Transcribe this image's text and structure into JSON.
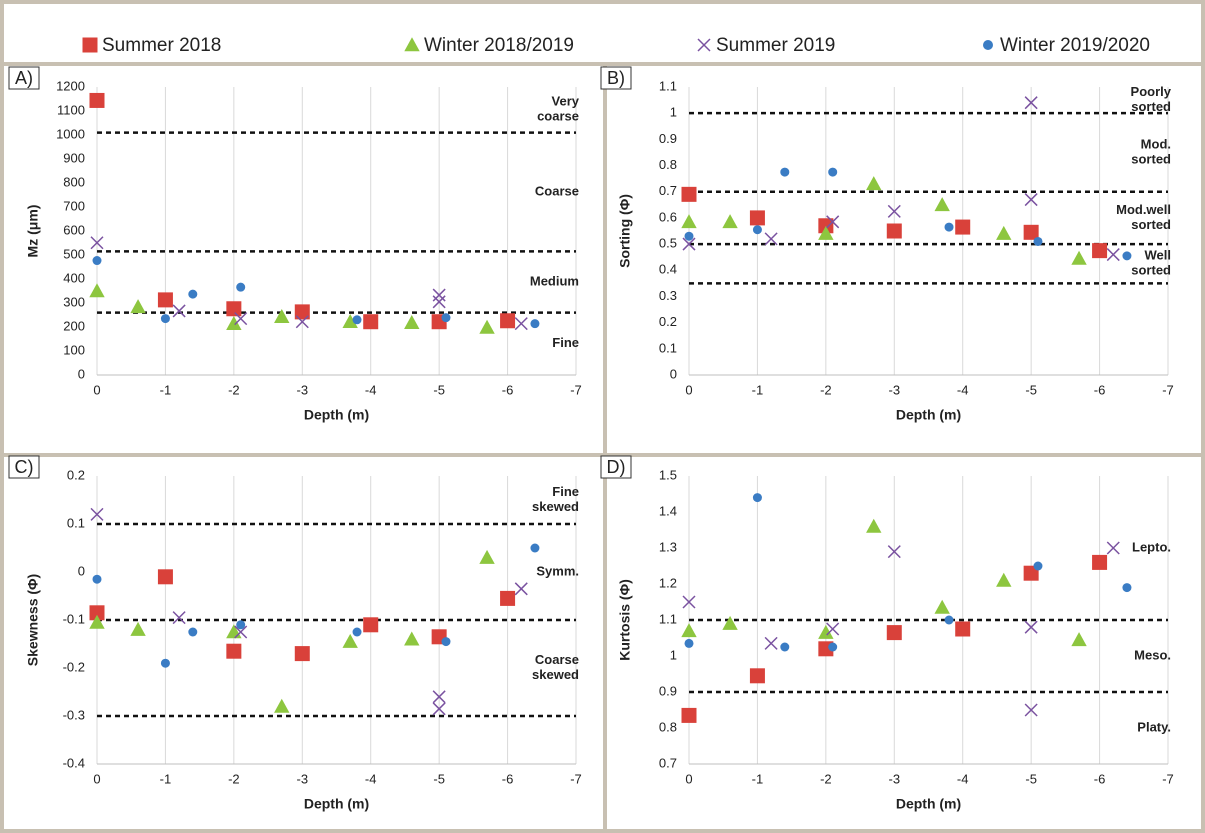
{
  "chart_data": [
    {
      "type": "scatter",
      "panel_label": "A)",
      "legend": "top",
      "xlabel": "Depth (m)",
      "ylabel": "Mz (μm)",
      "xlim": [
        0,
        -7
      ],
      "xticks": [
        0,
        -1,
        -2,
        -3,
        -4,
        -5,
        -6,
        -7
      ],
      "ylim": [
        0,
        1200
      ],
      "yticks": [
        0,
        100,
        200,
        300,
        400,
        500,
        600,
        700,
        800,
        900,
        1000,
        1100,
        1200
      ],
      "grid": true,
      "thresholds": [
        1010,
        515,
        260
      ],
      "zones": [
        [
          "Very",
          "coarse"
        ],
        [
          "Coarse"
        ],
        [
          "Medium"
        ],
        [
          "Fine"
        ]
      ],
      "series": [
        {
          "name": "Summer 2018",
          "color": "#d9413a",
          "marker": "square",
          "x": [
            0,
            -1,
            -2,
            -3,
            -4,
            -5,
            -6
          ],
          "values": [
            1144,
            313,
            276,
            263,
            222,
            222,
            226
          ]
        },
        {
          "name": "Winter 2018/2019",
          "color": "#8dc63f",
          "marker": "triangle",
          "x": [
            0,
            -0.6,
            -2,
            -2.7,
            -3.7,
            -4.6,
            -5.7
          ],
          "values": [
            350,
            284,
            214,
            243,
            222,
            218,
            198
          ]
        },
        {
          "name": "Summer 2019",
          "color": "#7a52a0",
          "marker": "cross",
          "x": [
            0,
            -1.2,
            -2.1,
            -3,
            -5,
            -5,
            -6.2
          ],
          "values": [
            551,
            267,
            235,
            222,
            333,
            305,
            214
          ]
        },
        {
          "name": "Winter 2019/2020",
          "color": "#3a7cc4",
          "marker": "circle",
          "x": [
            0,
            -1,
            -1.4,
            -2.1,
            -3.8,
            -5.1,
            -6.4
          ],
          "values": [
            477,
            235,
            337,
            366,
            230,
            239,
            214
          ]
        }
      ]
    },
    {
      "type": "scatter",
      "panel_label": "B)",
      "xlabel": "Depth (m)",
      "ylabel": "Sorting (Φ)",
      "xlim": [
        0,
        -7
      ],
      "xticks": [
        0,
        -1,
        -2,
        -3,
        -4,
        -5,
        -6,
        -7
      ],
      "ylim": [
        0,
        1.1
      ],
      "yticks": [
        0,
        0.1,
        0.2,
        0.3,
        0.4,
        0.5,
        0.6,
        0.7,
        0.8,
        0.9,
        1,
        1.1
      ],
      "grid": true,
      "thresholds": [
        1,
        0.7,
        0.5,
        0.35
      ],
      "zones": [
        [
          "Poorly",
          "sorted"
        ],
        [
          "Mod.",
          "sorted"
        ],
        [
          "Mod.well",
          "sorted"
        ],
        [
          "Well",
          "sorted"
        ]
      ],
      "series": [
        {
          "name": "Summer 2018",
          "color": "#d9413a",
          "marker": "square",
          "x": [
            0,
            -1,
            -2,
            -3,
            -4,
            -5,
            -6
          ],
          "values": [
            0.69,
            0.6,
            0.57,
            0.55,
            0.565,
            0.545,
            0.475
          ]
        },
        {
          "name": "Winter 2018/2019",
          "color": "#8dc63f",
          "marker": "triangle",
          "x": [
            0,
            -0.6,
            -2,
            -2.7,
            -3.7,
            -4.6,
            -5.7
          ],
          "values": [
            0.585,
            0.585,
            0.54,
            0.73,
            0.65,
            0.54,
            0.445
          ]
        },
        {
          "name": "Summer 2019",
          "color": "#7a52a0",
          "marker": "cross",
          "x": [
            0,
            -1.2,
            -2.1,
            -3,
            -5,
            -5,
            -6.2
          ],
          "values": [
            0.5,
            0.52,
            0.585,
            0.625,
            1.04,
            0.67,
            0.46
          ]
        },
        {
          "name": "Winter 2019/2020",
          "color": "#3a7cc4",
          "marker": "circle",
          "x": [
            0,
            -1,
            -1.4,
            -2.1,
            -3.8,
            -5.1,
            -6.4
          ],
          "values": [
            0.53,
            0.555,
            0.775,
            0.775,
            0.565,
            0.51,
            0.455
          ]
        }
      ]
    },
    {
      "type": "scatter",
      "panel_label": "C)",
      "xlabel": "Depth (m)",
      "ylabel": "Skewness (Φ)",
      "xlim": [
        0,
        -7
      ],
      "xticks": [
        0,
        -1,
        -2,
        -3,
        -4,
        -5,
        -6,
        -7
      ],
      "ylim": [
        -0.4,
        0.2
      ],
      "yticks": [
        -0.4,
        -0.3,
        -0.2,
        -0.1,
        0,
        0.1,
        0.2
      ],
      "grid": true,
      "thresholds": [
        0.1,
        -0.1,
        -0.3
      ],
      "zones": [
        [
          "Fine",
          "skewed"
        ],
        [
          "Symm."
        ],
        [
          "Coarse",
          "skewed"
        ]
      ],
      "series": [
        {
          "name": "Summer 2018",
          "color": "#d9413a",
          "marker": "square",
          "x": [
            0,
            -1,
            -2,
            -3,
            -4,
            -5,
            -6
          ],
          "values": [
            -0.085,
            -0.01,
            -0.165,
            -0.17,
            -0.11,
            -0.135,
            -0.055
          ]
        },
        {
          "name": "Winter 2018/2019",
          "color": "#8dc63f",
          "marker": "triangle",
          "x": [
            0,
            -0.6,
            -2,
            -2.7,
            -3.7,
            -4.6,
            -5.7
          ],
          "values": [
            -0.105,
            -0.12,
            -0.125,
            -0.28,
            -0.145,
            -0.14,
            0.03
          ]
        },
        {
          "name": "Summer 2019",
          "color": "#7a52a0",
          "marker": "cross",
          "x": [
            0,
            -1.2,
            -2.1,
            -3,
            -5,
            -5,
            -6.2
          ],
          "values": [
            0.12,
            -0.095,
            -0.125,
            null,
            -0.26,
            -0.285,
            -0.035
          ]
        },
        {
          "name": "Winter 2019/2020",
          "color": "#3a7cc4",
          "marker": "circle",
          "x": [
            0,
            -1,
            -1.4,
            -2.1,
            -3.8,
            -5.1,
            -6.4
          ],
          "values": [
            -0.015,
            -0.19,
            -0.125,
            -0.11,
            -0.125,
            -0.145,
            0.05
          ]
        }
      ]
    },
    {
      "type": "scatter",
      "panel_label": "D)",
      "xlabel": "Depth (m)",
      "ylabel": "Kurtosis (Φ)",
      "xlim": [
        0,
        -7
      ],
      "xticks": [
        0,
        -1,
        -2,
        -3,
        -4,
        -5,
        -6,
        -7
      ],
      "ylim": [
        0.7,
        1.5
      ],
      "yticks": [
        0.7,
        0.8,
        0.9,
        1,
        1.1,
        1.2,
        1.3,
        1.4,
        1.5
      ],
      "grid": true,
      "thresholds": [
        1.1,
        0.9
      ],
      "zones": [
        [
          "Lepto."
        ],
        [
          "Meso."
        ],
        [
          "Platy."
        ]
      ],
      "series": [
        {
          "name": "Summer 2018",
          "color": "#d9413a",
          "marker": "square",
          "x": [
            0,
            -1,
            -2,
            -3,
            -4,
            -5,
            -6
          ],
          "values": [
            0.835,
            0.945,
            1.02,
            1.065,
            1.075,
            1.23,
            1.26
          ]
        },
        {
          "name": "Winter 2018/2019",
          "color": "#8dc63f",
          "marker": "triangle",
          "x": [
            0,
            -0.6,
            -2,
            -2.7,
            -3.7,
            -4.6,
            -5.7
          ],
          "values": [
            1.07,
            1.09,
            1.065,
            1.36,
            1.135,
            1.21,
            1.045
          ]
        },
        {
          "name": "Summer 2019",
          "color": "#7a52a0",
          "marker": "cross",
          "x": [
            0,
            -1.2,
            -2.1,
            -3,
            -5,
            -5,
            -6.2
          ],
          "values": [
            1.15,
            1.035,
            1.075,
            1.29,
            1.08,
            0.85,
            1.3
          ]
        },
        {
          "name": "Winter 2019/2020",
          "color": "#3a7cc4",
          "marker": "circle",
          "x": [
            0,
            -1,
            -1.4,
            -2.1,
            -3.8,
            -5.1,
            -6.4
          ],
          "values": [
            1.035,
            1.44,
            1.025,
            1.025,
            1.1,
            1.25,
            1.19
          ]
        }
      ]
    }
  ]
}
